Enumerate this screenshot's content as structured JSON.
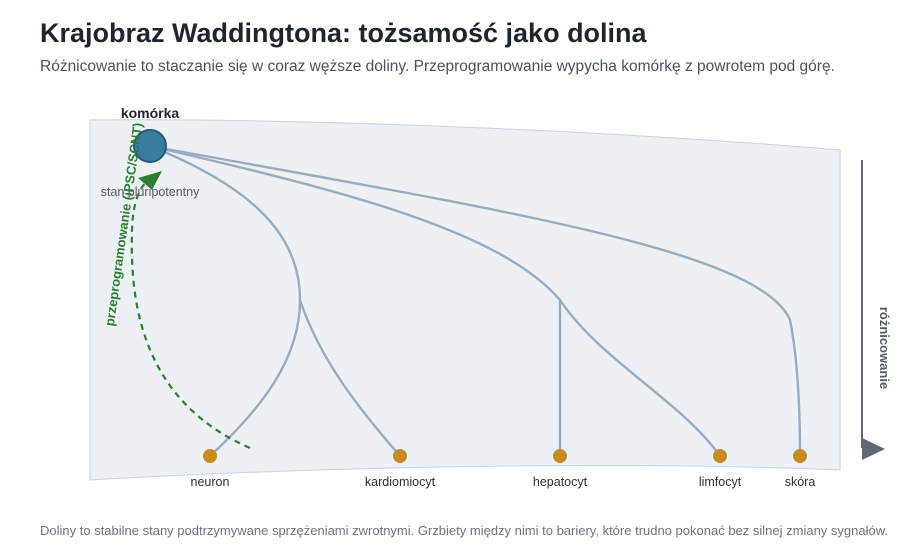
{
  "header": {
    "title": "Krajobraz Waddingtona: tożsamość jako dolina",
    "subtitle": "Różnicowanie to staczanie się w coraz węższe doliny. Przeprogramowanie wypycha komórkę z powrotem pod górę."
  },
  "diagram": {
    "cell_label": "komórka",
    "state_label": "stan pluripotentny",
    "reprogramming_label": "przeprogramowanie (iPSC/SCNT)",
    "axis_label": "różnicowanie",
    "fates": [
      {
        "label": "neuron"
      },
      {
        "label": "kardiomiocyt"
      },
      {
        "label": "hepatocyt"
      },
      {
        "label": "limfocyt"
      },
      {
        "label": "skóra"
      }
    ],
    "colors": {
      "landscape_fill": "#edf1f6",
      "valley_line": "#9aabbd",
      "cell": "#3a7ba0",
      "fate_dot": "#c98b20",
      "reprogramming": "#2e7d32",
      "axis": "#5f6873"
    }
  },
  "footer": {
    "note": "Doliny to stabilne stany podtrzymywane sprzężeniami zwrotnymi. Grzbiety między nimi to bariery, które trudno pokonać bez silnej zmiany sygnałów."
  }
}
